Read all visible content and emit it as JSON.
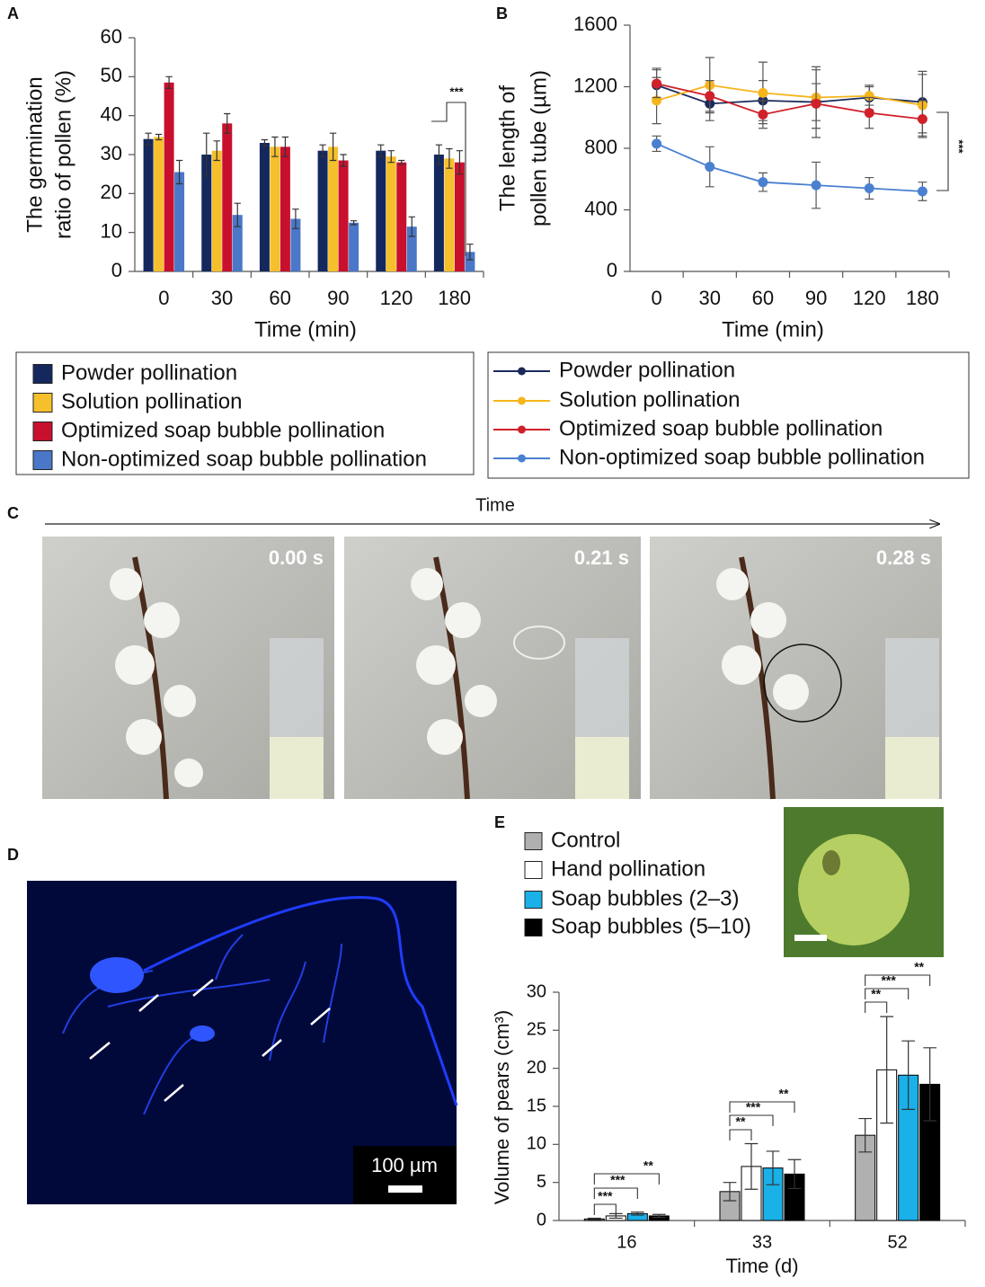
{
  "figure": {
    "panel_labels": [
      "A",
      "B",
      "C",
      "D",
      "E"
    ],
    "panel_c": {
      "axis_label": "Time",
      "timestamps": [
        "0.00 s",
        "0.21 s",
        "0.28 s"
      ]
    },
    "panel_d": {
      "scale_bar": "100 µm"
    }
  },
  "chart_data": [
    {
      "type": "bar",
      "x_label": "Time (min)",
      "y_label": [
        "The germination",
        "ratio of pollen (%)"
      ],
      "categories": [
        "0",
        "30",
        "60",
        "90",
        "120",
        "180"
      ],
      "ylim": [
        0,
        60
      ],
      "yticks": [
        0,
        10,
        20,
        30,
        40,
        50,
        60
      ],
      "annotations": [
        "***"
      ],
      "series": [
        {
          "name": "Powder pollination",
          "color": "#14285e",
          "values": [
            34,
            30,
            33,
            31,
            31,
            30
          ],
          "errors": [
            1.5,
            5.5,
            0.8,
            1.5,
            1.5,
            2.5
          ]
        },
        {
          "name": "Solution pollination",
          "color": "#f6c02c",
          "values": [
            34.5,
            31,
            32,
            32,
            29.5,
            29
          ],
          "errors": [
            0.7,
            2.5,
            2.5,
            3.5,
            1.5,
            2.5
          ]
        },
        {
          "name": "Optimized soap bubble pollination",
          "color": "#c8102e",
          "values": [
            48.5,
            38,
            32,
            28.5,
            28,
            28
          ],
          "errors": [
            1.5,
            2.5,
            2.5,
            1.5,
            0.5,
            3
          ]
        },
        {
          "name": "Non-optimized soap bubble pollination",
          "color": "#4a77c7",
          "values": [
            25.5,
            14.5,
            13.5,
            12.5,
            11.5,
            5
          ],
          "errors": [
            3,
            3,
            2.5,
            0.5,
            2.5,
            2
          ]
        }
      ]
    },
    {
      "type": "line",
      "x_label": "Time (min)",
      "y_label": [
        "The length of",
        "pollen tube (µm)"
      ],
      "categories": [
        "0",
        "30",
        "60",
        "90",
        "120",
        "180"
      ],
      "ylim": [
        0,
        1600
      ],
      "yticks": [
        0,
        400,
        800,
        1200,
        1600
      ],
      "annotations": [
        "***"
      ],
      "series": [
        {
          "name": "Powder pollination",
          "color": "#1b2a5a",
          "values": [
            1210,
            1090,
            1110,
            1100,
            1130,
            1100
          ],
          "errors": [
            110,
            110,
            130,
            120,
            80,
            200
          ]
        },
        {
          "name": "Solution pollination",
          "color": "#f6b51c",
          "values": [
            1110,
            1210,
            1160,
            1130,
            1140,
            1080
          ],
          "errors": [
            150,
            180,
            200,
            200,
            60,
            200
          ]
        },
        {
          "name": "Optimized soap bubble pollination",
          "color": "#d0202a",
          "values": [
            1220,
            1140,
            1020,
            1090,
            1030,
            990
          ],
          "errors": [
            90,
            100,
            90,
            220,
            100,
            120
          ]
        },
        {
          "name": "Non-optimized soap bubble pollination",
          "color": "#4a80d0",
          "values": [
            830,
            680,
            580,
            560,
            540,
            520
          ],
          "errors": [
            50,
            130,
            60,
            150,
            70,
            60
          ]
        }
      ]
    },
    {
      "type": "bar",
      "x_label": "Time (d)",
      "y_label": [
        "Volume of pears (cm³)"
      ],
      "categories": [
        "16",
        "33",
        "52"
      ],
      "ylim": [
        0,
        30
      ],
      "yticks": [
        0,
        5,
        10,
        15,
        20,
        25,
        30
      ],
      "annotations": [
        "***",
        "***",
        "**",
        "**",
        "***",
        "**",
        "**",
        "***",
        "**"
      ],
      "series": [
        {
          "name": "Control",
          "color": "#b0b0b0",
          "values": [
            0.2,
            3.8,
            11.2
          ],
          "errors": [
            0.1,
            1.2,
            2.2
          ]
        },
        {
          "name": "Hand pollination",
          "color": "#ffffff",
          "values": [
            0.6,
            7.1,
            19.8
          ],
          "errors": [
            0.3,
            3,
            7
          ]
        },
        {
          "name": "Soap bubbles (2–3)",
          "color": "#1ab0e8",
          "values": [
            0.9,
            6.9,
            19.1
          ],
          "errors": [
            0.2,
            2.2,
            4.5
          ]
        },
        {
          "name": "Soap bubbles (5–10)",
          "color": "#000000",
          "values": [
            0.6,
            6.1,
            17.9
          ],
          "errors": [
            0.2,
            1.9,
            4.8
          ]
        }
      ]
    }
  ]
}
